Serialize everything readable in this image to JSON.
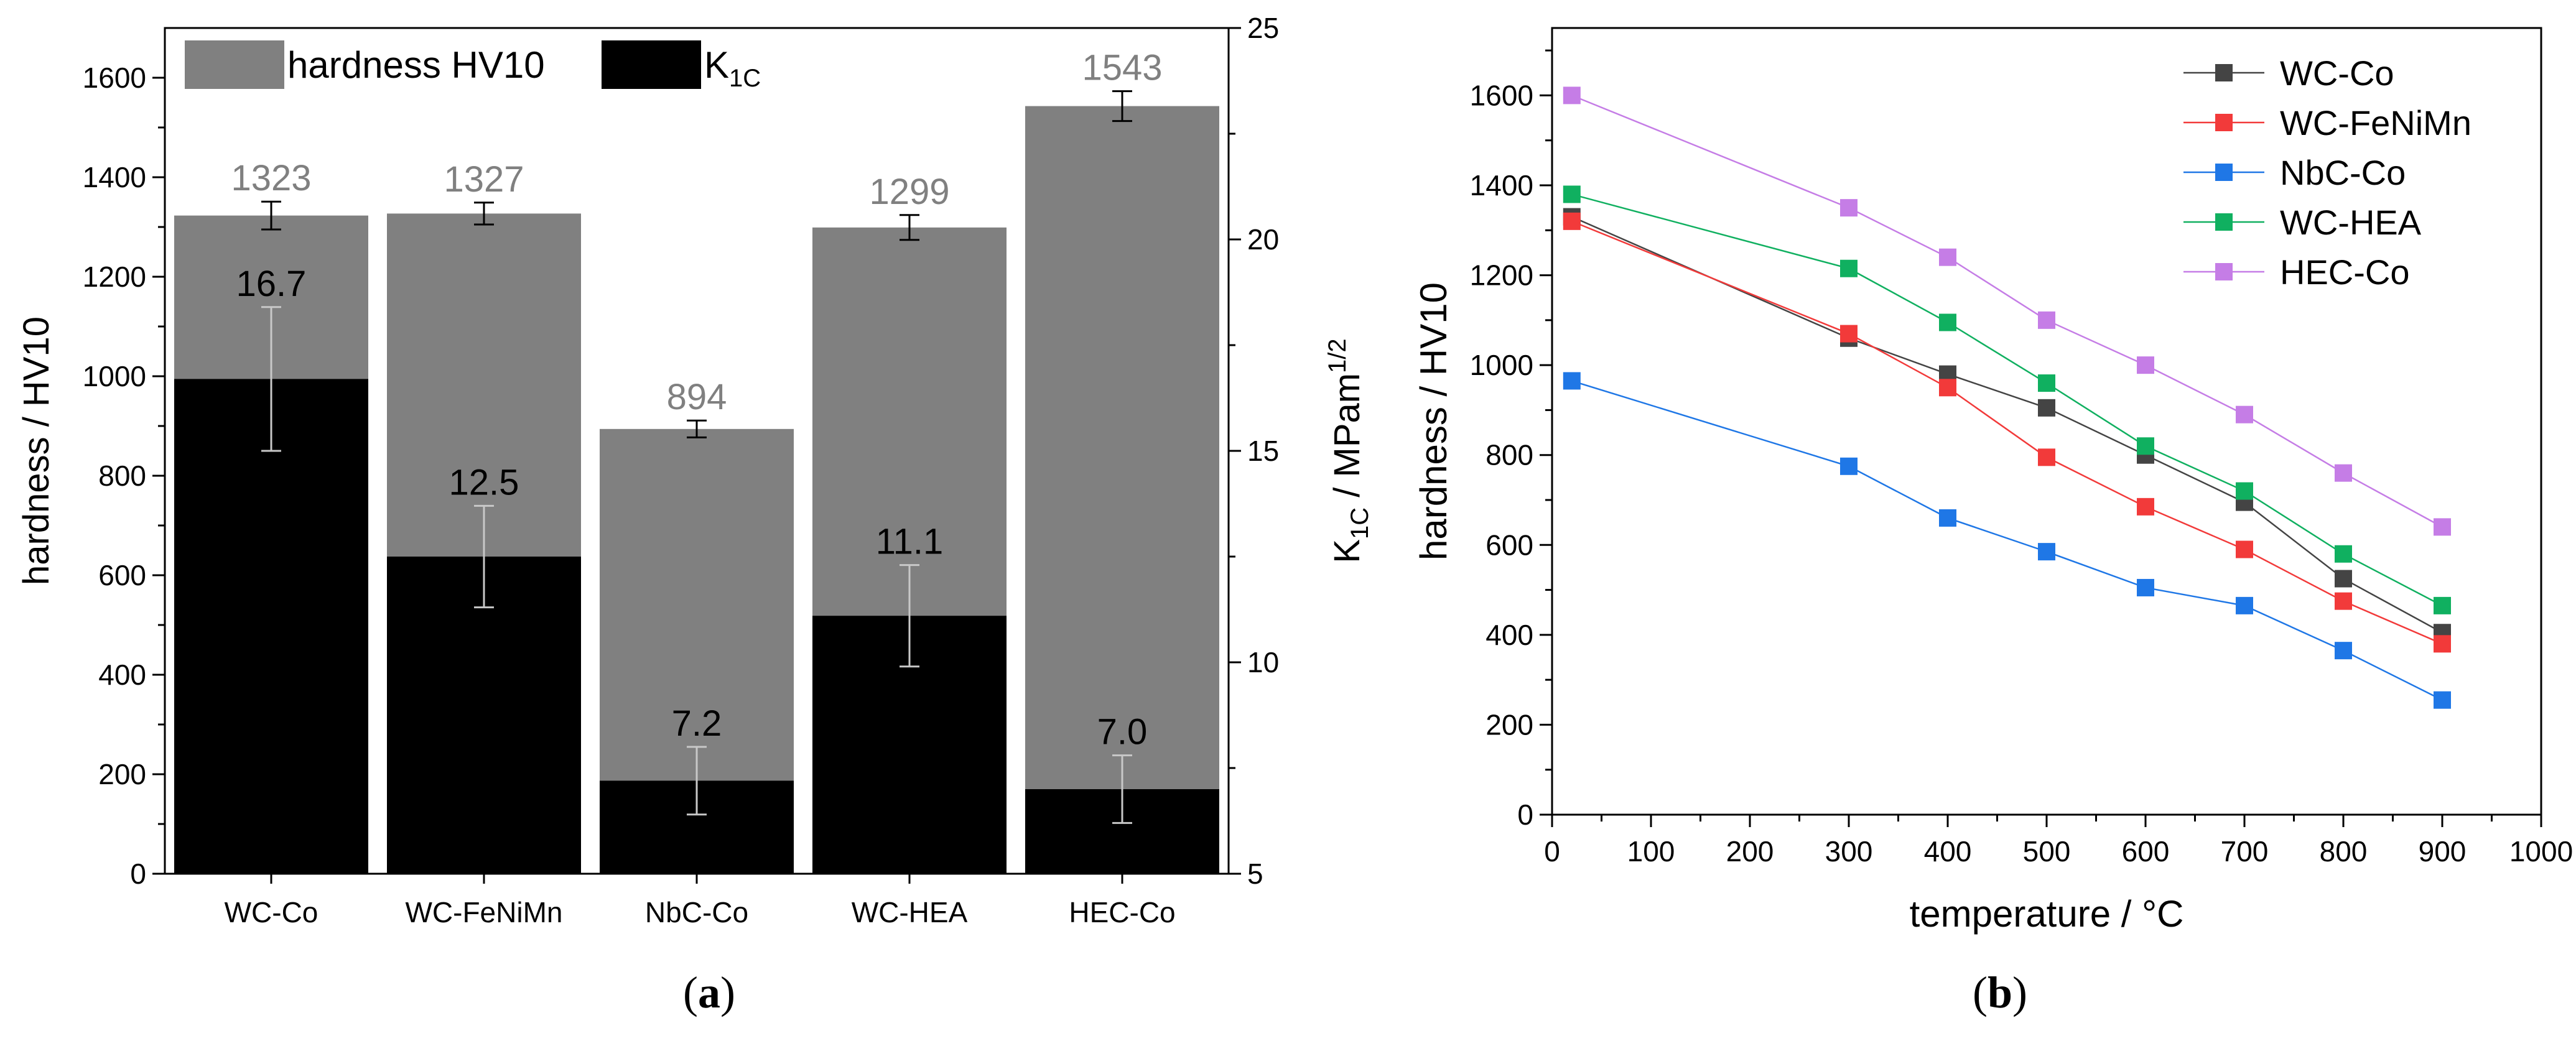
{
  "chart_data": [
    {
      "panel": "(a)",
      "panel_letter": "a",
      "type": "bar",
      "categories": [
        "WC-Co",
        "WC-FeNiMn",
        "NbC-Co",
        "WC-HEA",
        "HEC-Co"
      ],
      "series": [
        {
          "name": "hardness HV10",
          "axis": "left",
          "color": "#808080",
          "values": [
            1323,
            1327,
            894,
            1299,
            1543
          ],
          "labels": [
            "1323",
            "1327",
            "894",
            "1299",
            "1543"
          ],
          "errors": [
            28,
            22,
            17,
            25,
            30
          ]
        },
        {
          "name": "K1C",
          "name_main": "K",
          "name_sub": "1C",
          "axis": "right",
          "color": "#000000",
          "values": [
            16.7,
            12.5,
            7.2,
            11.1,
            7.0
          ],
          "labels": [
            "16.7",
            "12.5",
            "7.2",
            "11.1",
            "7.0"
          ],
          "errors": [
            1.7,
            1.2,
            0.8,
            1.2,
            0.8
          ]
        }
      ],
      "ylabel": "hardness / HV10",
      "y2label": {
        "prefix": "K",
        "sub": "1C",
        "mid": " / MPam",
        "sup": "1/2"
      },
      "ylim": [
        0,
        1700
      ],
      "y2lim": [
        5,
        25
      ],
      "yticks": [
        0,
        200,
        400,
        600,
        800,
        1000,
        1200,
        1400,
        1600
      ],
      "y2ticks": [
        5,
        10,
        15,
        20,
        25
      ],
      "legend": "top-left"
    },
    {
      "panel": "(b)",
      "panel_letter": "b",
      "type": "line",
      "xlabel": "temperature / °C",
      "ylabel": "hardness / HV10",
      "xlim": [
        0,
        1000
      ],
      "ylim": [
        0,
        1750
      ],
      "xticks": [
        0,
        100,
        200,
        300,
        400,
        500,
        600,
        700,
        800,
        900,
        1000
      ],
      "yticks": [
        0,
        200,
        400,
        600,
        800,
        1000,
        1200,
        1400,
        1600
      ],
      "x": [
        20,
        300,
        400,
        500,
        600,
        700,
        800,
        900
      ],
      "series": [
        {
          "name": "WC-Co",
          "color": "#444444",
          "values": [
            1330,
            1060,
            980,
            905,
            800,
            695,
            525,
            405
          ]
        },
        {
          "name": "WC-FeNiMn",
          "color": "#f23a3a",
          "values": [
            1320,
            1070,
            950,
            795,
            685,
            590,
            475,
            380
          ]
        },
        {
          "name": "NbC-Co",
          "color": "#1f77e6",
          "values": [
            965,
            775,
            660,
            585,
            505,
            465,
            365,
            255
          ]
        },
        {
          "name": "WC-HEA",
          "color": "#10b060",
          "values": [
            1380,
            1215,
            1095,
            960,
            820,
            720,
            580,
            465
          ]
        },
        {
          "name": "HEC-Co",
          "color": "#c57de6",
          "values": [
            1600,
            1350,
            1240,
            1100,
            1000,
            890,
            760,
            640
          ]
        }
      ],
      "legend": "top-right"
    }
  ]
}
